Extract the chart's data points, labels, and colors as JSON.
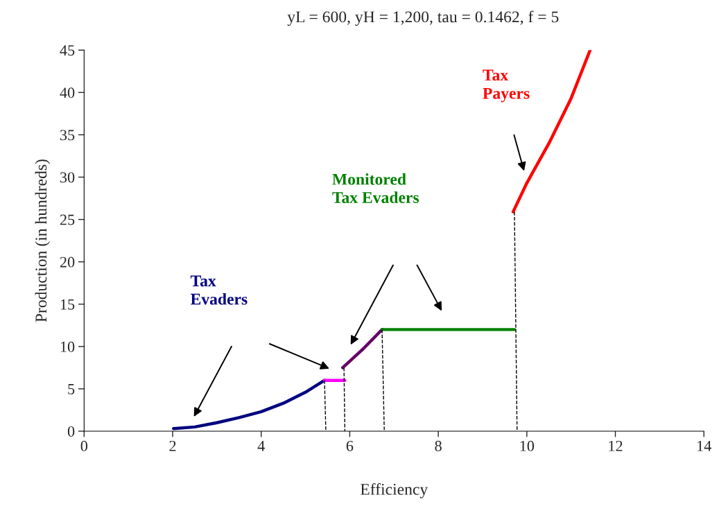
{
  "chart_data": {
    "type": "line",
    "title": "yL = 600, yH = 1,200, tau = 0.1462, f = 5",
    "xlabel": "Efficiency",
    "ylabel": "Production (in hundreds)",
    "xlim": [
      0,
      14
    ],
    "ylim": [
      0,
      45
    ],
    "xticks": [
      0,
      2,
      4,
      6,
      8,
      10,
      12,
      14
    ],
    "yticks": [
      0,
      5,
      10,
      15,
      20,
      25,
      30,
      35,
      40,
      45
    ],
    "grid": false,
    "legend": false,
    "marker": "none",
    "series": [
      {
        "color": "#000080",
        "x": [
          2.02,
          2.5,
          3,
          3.5,
          4,
          4.5,
          5,
          5.43
        ],
        "values": [
          0.3,
          0.5,
          1.0,
          1.6,
          2.3,
          3.3,
          4.6,
          6.0
        ]
      },
      {
        "color": "#ff00ff",
        "x": [
          5.43,
          5.89
        ],
        "values": [
          6,
          6
        ]
      },
      {
        "color": "#660066",
        "x": [
          5.84,
          6.3,
          6.73
        ],
        "values": [
          7.5,
          9.7,
          12
        ]
      },
      {
        "color": "#008000",
        "x": [
          6.73,
          9.72
        ],
        "values": [
          12,
          12
        ]
      },
      {
        "color": "#ff0000",
        "x": [
          9.69,
          10.0,
          10.5,
          11.0,
          11.43
        ],
        "values": [
          25.9,
          29.3,
          34.0,
          39.3,
          45
        ]
      },
      {
        "color": "#000000",
        "line_style": "dashed",
        "x": [
          5.43,
          5.46
        ],
        "values": [
          6,
          0
        ]
      },
      {
        "color": "#000000",
        "line_style": "dashed",
        "x": [
          5.87,
          5.89
        ],
        "values": [
          7.5,
          0
        ]
      },
      {
        "color": "#000000",
        "line_style": "dashed",
        "x": [
          6.73,
          6.78
        ],
        "values": [
          12,
          0
        ]
      },
      {
        "color": "#000000",
        "line_style": "dashed",
        "x": [
          9.72,
          9.78
        ],
        "values": [
          25.9,
          0
        ]
      }
    ],
    "annotations": [
      "Tax\nEvaders",
      "Monitored\nTax Evaders",
      "Tax\nPayers"
    ]
  }
}
